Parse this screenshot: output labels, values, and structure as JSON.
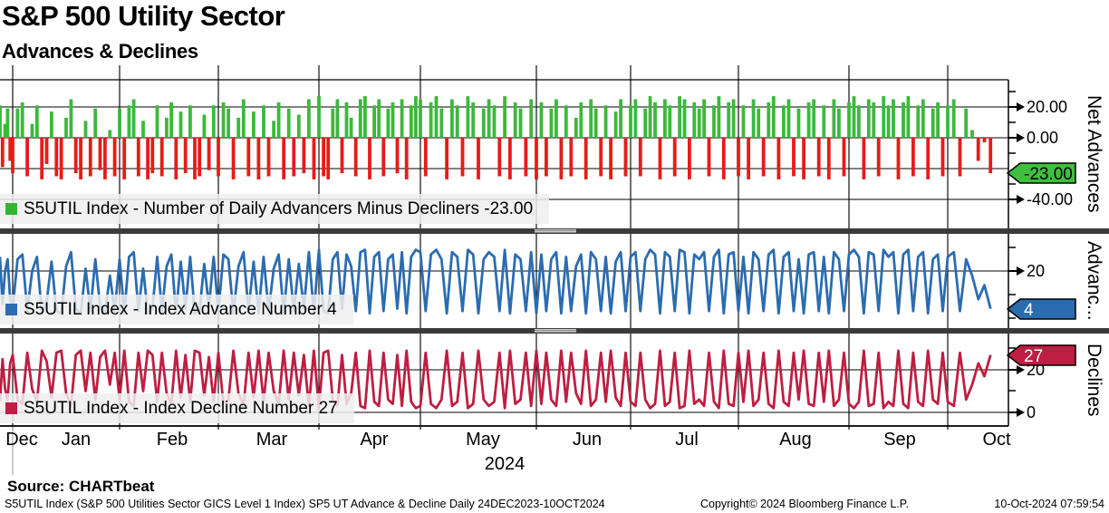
{
  "header": {
    "title": "S&P 500 Utility Sector",
    "subtitle": "Advances & Declines"
  },
  "panels": [
    {
      "id": "net-advances",
      "axis_title": "Net Advances",
      "legend_label": "S5UTIL Index - Number of Daily Advancers Minus Decliners -23.00",
      "swatch_color": "#33B533",
      "badge": {
        "text": "-23.00",
        "bg": "#3FBF3F",
        "fg": "#000000"
      },
      "ticks": {
        "t20": "20.00",
        "t0": "0.00",
        "tm40": "-40.00"
      }
    },
    {
      "id": "advances",
      "axis_title": "Advanc...",
      "legend_label": "S5UTIL Index - Index Advance Number 4",
      "swatch_color": "#2B6CB0",
      "badge": {
        "text": "4",
        "bg": "#2B6CB0",
        "fg": "#FFFFFF"
      },
      "ticks": {
        "t20": "20"
      }
    },
    {
      "id": "declines",
      "axis_title": "Declines",
      "legend_label": "S5UTIL Index - Index Decline Number 27",
      "swatch_color": "#BE1E42",
      "badge": {
        "text": "27",
        "bg": "#BE1E42",
        "fg": "#FFFFFF"
      },
      "ticks": {
        "t20": "20",
        "t0": "0"
      }
    }
  ],
  "x_axis": {
    "months": [
      "Dec",
      "Jan",
      "Feb",
      "Mar",
      "Apr",
      "May",
      "Jun",
      "Jul",
      "Aug",
      "Sep",
      "Oct"
    ],
    "year": "2024"
  },
  "source_label": "Source: CHARTbeat",
  "footer": {
    "left": "S5UTIL Index (S&P 500 Utilities Sector GICS Level 1 Index) SP5 UT Advance & Decline  Daily 24DEC2023-10OCT2024",
    "center": "Copyright© 2024 Bloomberg Finance L.P.",
    "right": "10-Oct-2024 07:59:54"
  },
  "chart_data": {
    "type": "bar",
    "title": "S&P 500 Utility Sector - Advances & Declines",
    "frequency": "Daily",
    "date_range": "24DEC2023-10OCT2024",
    "colors": {
      "net_up": "#3CB83C",
      "net_down": "#E91A1A",
      "advances_line": "#2B6CB0",
      "declines_line": "#BE1E42"
    },
    "panels": [
      {
        "type": "bar",
        "name": "Net Advances",
        "series": "Number of Daily Advancers Minus Decliners",
        "last": -23,
        "gridlines": [
          20,
          0,
          -20,
          -40
        ],
        "tick_labels": [
          20,
          0,
          -40
        ]
      },
      {
        "type": "line",
        "name": "Advances",
        "series": "Index Advance Number",
        "last": 4,
        "gridlines": [
          20
        ],
        "tick_labels": [
          20
        ]
      },
      {
        "type": "line",
        "name": "Declines",
        "series": "Index Decline Number",
        "last": 27,
        "gridlines": [
          20,
          0
        ],
        "tick_labels": [
          20,
          0
        ]
      }
    ],
    "months": [
      "Dec",
      "Jan",
      "Feb",
      "Mar",
      "Apr",
      "May",
      "Jun",
      "Jul",
      "Aug",
      "Sep",
      "Oct"
    ],
    "month_start_indices": [
      0,
      5,
      27,
      48,
      68,
      90,
      112,
      131,
      153,
      175,
      195,
      203
    ],
    "net_definition": "net = advances - declines",
    "advances": [
      26,
      6,
      20,
      25,
      8,
      4,
      25,
      27,
      3,
      20,
      26,
      2,
      7,
      24,
      3,
      2,
      22,
      28,
      4,
      2,
      21,
      3,
      25,
      5,
      2,
      18,
      3,
      25,
      2,
      26,
      28,
      3,
      21,
      2,
      4,
      26,
      3,
      22,
      27,
      2,
      24,
      4,
      26,
      2,
      3,
      23,
      5,
      26,
      3,
      27,
      25,
      2,
      22,
      28,
      3,
      24,
      2,
      26,
      3,
      21,
      27,
      2,
      25,
      3,
      23,
      4,
      28,
      2,
      29,
      3,
      2,
      25,
      28,
      4,
      27,
      22,
      3,
      28,
      29,
      2,
      26,
      28,
      3,
      25,
      27,
      4,
      28,
      2,
      26,
      29,
      28,
      3,
      27,
      29,
      25,
      2,
      28,
      26,
      3,
      29,
      27,
      2,
      25,
      28,
      26,
      3,
      29,
      2,
      27,
      25,
      3,
      28,
      2,
      27,
      3,
      25,
      28,
      2,
      26,
      3,
      22,
      27,
      2,
      28,
      25,
      3,
      26,
      2,
      24,
      28,
      3,
      26,
      28,
      3,
      25,
      29,
      27,
      2,
      28,
      26,
      3,
      29,
      28,
      2,
      27,
      25,
      28,
      3,
      26,
      29,
      2,
      27,
      28,
      3,
      26,
      2,
      28,
      25,
      3,
      27,
      29,
      2,
      26,
      28,
      3,
      25,
      2,
      27,
      28,
      3,
      26,
      2,
      28,
      25,
      3,
      27,
      29,
      26,
      2,
      28,
      27,
      3,
      29,
      26,
      28,
      2,
      27,
      29,
      3,
      26,
      28,
      2,
      25,
      27,
      3,
      26,
      28,
      3,
      25,
      18,
      8,
      14,
      4
    ],
    "declines": [
      5,
      25,
      11,
      6,
      23,
      27,
      6,
      4,
      28,
      11,
      5,
      29,
      24,
      7,
      28,
      29,
      9,
      3,
      27,
      29,
      10,
      28,
      6,
      26,
      29,
      13,
      28,
      6,
      29,
      5,
      3,
      28,
      10,
      29,
      27,
      5,
      28,
      9,
      4,
      29,
      7,
      27,
      5,
      29,
      28,
      8,
      26,
      5,
      28,
      4,
      6,
      29,
      9,
      3,
      28,
      7,
      29,
      5,
      28,
      10,
      4,
      29,
      6,
      28,
      8,
      27,
      3,
      29,
      2,
      28,
      29,
      6,
      3,
      27,
      4,
      9,
      28,
      3,
      2,
      29,
      5,
      3,
      28,
      6,
      4,
      27,
      3,
      29,
      5,
      2,
      3,
      28,
      4,
      2,
      6,
      29,
      3,
      5,
      28,
      2,
      4,
      29,
      6,
      3,
      5,
      28,
      2,
      29,
      4,
      6,
      28,
      3,
      29,
      4,
      28,
      6,
      3,
      29,
      5,
      28,
      9,
      4,
      29,
      3,
      6,
      28,
      5,
      29,
      7,
      3,
      28,
      5,
      3,
      28,
      6,
      2,
      4,
      29,
      3,
      5,
      28,
      2,
      3,
      29,
      4,
      6,
      3,
      28,
      5,
      2,
      29,
      4,
      3,
      28,
      5,
      29,
      3,
      6,
      28,
      4,
      2,
      29,
      5,
      3,
      28,
      6,
      29,
      4,
      3,
      28,
      5,
      29,
      3,
      6,
      28,
      4,
      2,
      5,
      29,
      3,
      4,
      28,
      2,
      5,
      3,
      29,
      4,
      2,
      28,
      5,
      3,
      29,
      6,
      4,
      28,
      5,
      3,
      28,
      6,
      13,
      23,
      17,
      27
    ]
  }
}
